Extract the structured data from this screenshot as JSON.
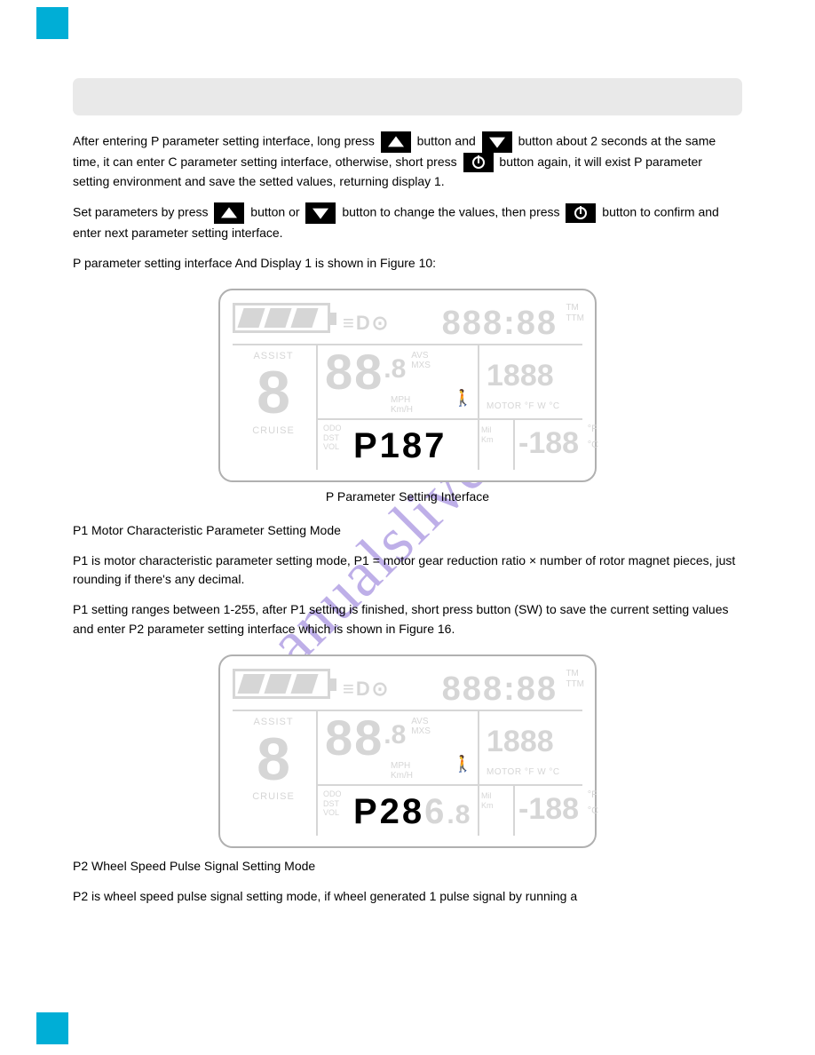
{
  "watermark": "manualslive.com",
  "banner": {
    "title": ""
  },
  "intro_line": "P parameter setting interface And Display 1 is shown in Figure 10:",
  "para1_a": "After entering P parameter setting interface, long press  ",
  "para1_b": "button and  ",
  "para1_c": "button about 2 seconds at the same time, it can enter C parameter setting interface, otherwise, short press",
  "para1_d": "button again, it will exist P parameter setting environment and save the setted values, returning display 1.",
  "para2_a": "Set parameters by press",
  "para2_b": "button or",
  "para2_c": "button to change the values, then press",
  "para2_d": "button to confirm and enter next parameter setting interface.",
  "caption1": "P Parameter Setting Interface",
  "p1": {
    "title": "P1 Motor Characteristic Parameter Setting Mode",
    "text": "P1 is motor characteristic parameter setting mode, P1 = motor gear reduction ratio × number of rotor magnet pieces, just rounding if there's any decimal.",
    "text2": "P1 setting ranges between 1-255, after P1 setting is finished, short press button (SW) to save the current setting values and enter P2 parameter setting interface which is shown in Figure 16."
  },
  "p2": {
    "title": "P2 Wheel Speed Pulse Signal Setting Mode",
    "text": "P2 is wheel speed pulse signal setting mode, if wheel generated 1 pulse signal by running a"
  },
  "lcd": {
    "ghost_color": "#d6d6d6",
    "active_color": "#000000",
    "border_color": "#b0b0b0",
    "battery_segments": 3,
    "time_ghost": "888:88",
    "tm1": "TM",
    "tm2": "TTM",
    "assist_label": "ASSIST",
    "assist_digit": "8",
    "cruise_label": "CRUISE",
    "speed_main": "88",
    "speed_dec": ".8",
    "avs": "AVS",
    "mxs": "MXS",
    "mph": "MPH",
    "kmh": "Km/H",
    "walker": "🚶",
    "motor_val": "1888",
    "motor_label": "MOTOR °F W °C",
    "odo": "ODO",
    "dst": "DST",
    "vol": "VOL",
    "mil": "Mil",
    "km": "Km",
    "temp_val": "-188",
    "temp_f": "°F",
    "temp_c": "°C",
    "lights": "≡D⊙"
  },
  "param1_display": {
    "active": "P187",
    "ghost_suffix": ""
  },
  "param2_display": {
    "active": "P28",
    "mid_ghost": "6",
    "suffix_ghost": ".8"
  }
}
